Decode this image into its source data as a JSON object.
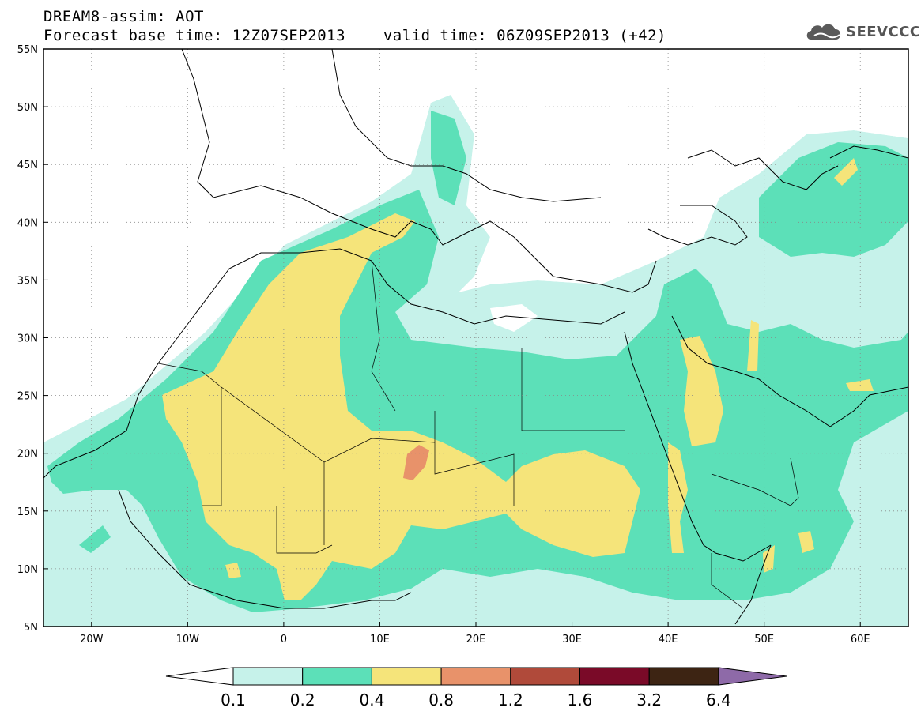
{
  "header": {
    "title": "DREAM8-assim: AOT",
    "base_time_label": "Forecast base time: 12Z07SEP2013",
    "valid_time_label": "valid time: 06Z09SEP2013 (+42)",
    "logo_text": "SEEVCCC",
    "logo_icon": "cloud-icon"
  },
  "map": {
    "projection": "equirectangular",
    "lon_range": [
      -25,
      65
    ],
    "lat_range": [
      5,
      55
    ],
    "lat_labels": [
      "5N",
      "10N",
      "15N",
      "20N",
      "25N",
      "30N",
      "35N",
      "40N",
      "45N",
      "50N",
      "55N"
    ],
    "lon_labels": [
      "20W",
      "10W",
      "0",
      "10E",
      "20E",
      "30E",
      "40E",
      "50E",
      "60E"
    ],
    "grid": "dotted"
  },
  "colorbar": {
    "labels": [
      "0.1",
      "0.2",
      "0.4",
      "0.8",
      "1.2",
      "1.6",
      "3.2",
      "6.4"
    ],
    "colors": [
      "#ffffff",
      "#c6f2ea",
      "#5ce0b8",
      "#f5e47a",
      "#e8926a",
      "#b04a3a",
      "#7a0a28",
      "#3d2413",
      "#8e6aa8"
    ]
  }
}
